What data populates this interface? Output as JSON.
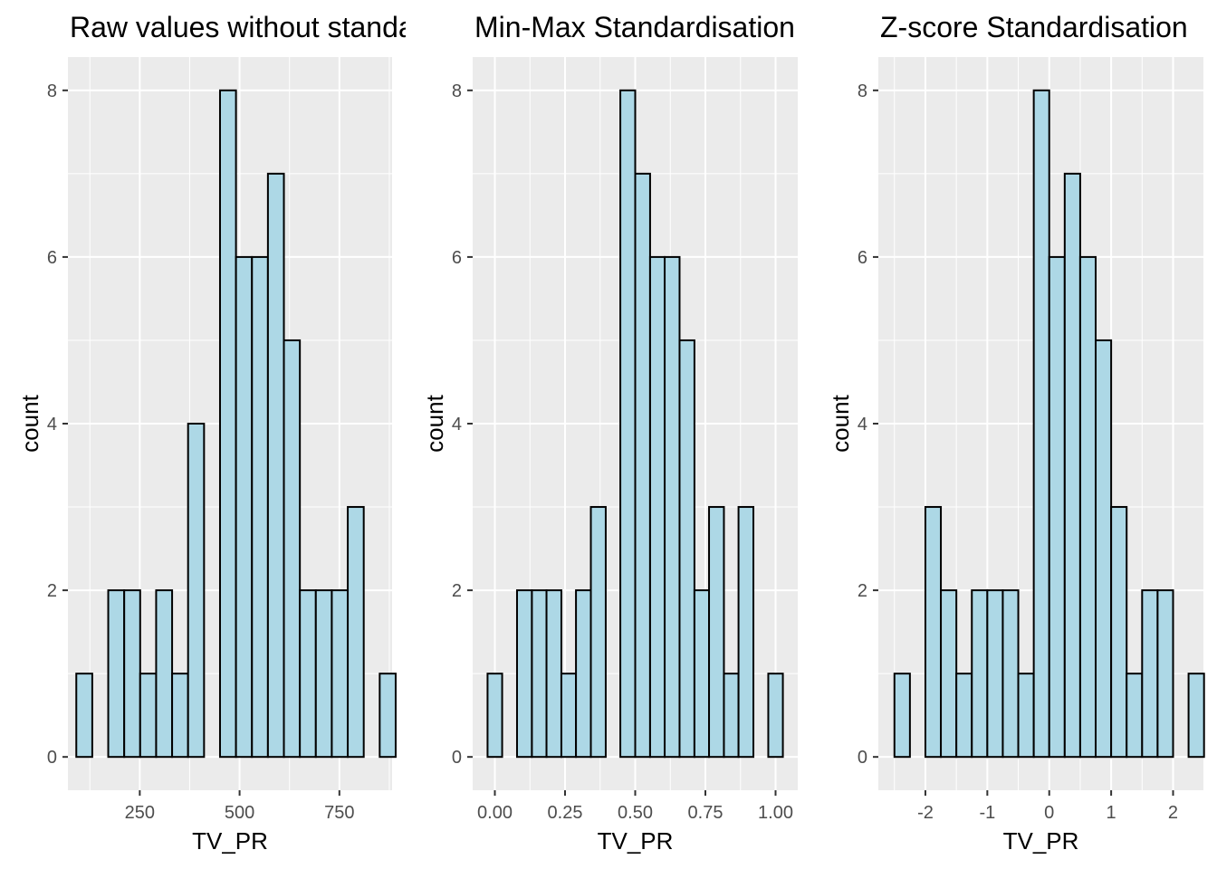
{
  "chart_data": [
    {
      "type": "bar",
      "title": "Raw values without standardisation",
      "xlabel": "TV_PR",
      "ylabel": "count",
      "xticks": [
        250,
        500,
        750
      ],
      "xtick_labels": [
        "250",
        "500",
        "750"
      ],
      "yticks": [
        0,
        2,
        4,
        6,
        8
      ],
      "ytick_labels": [
        "0",
        "2",
        "4",
        "6",
        "8"
      ],
      "xlim": [
        70,
        882
      ],
      "ylim": [
        -0.4,
        8.4
      ],
      "grid": true,
      "bins": [
        {
          "xmin": 91,
          "xmax": 131,
          "count": 1
        },
        {
          "xmin": 131,
          "xmax": 171,
          "count": 0
        },
        {
          "xmin": 171,
          "xmax": 211,
          "count": 2
        },
        {
          "xmin": 211,
          "xmax": 251,
          "count": 2
        },
        {
          "xmin": 251,
          "xmax": 291,
          "count": 1
        },
        {
          "xmin": 291,
          "xmax": 331,
          "count": 2
        },
        {
          "xmin": 331,
          "xmax": 371,
          "count": 1
        },
        {
          "xmin": 371,
          "xmax": 411,
          "count": 4
        },
        {
          "xmin": 411,
          "xmax": 451,
          "count": 0
        },
        {
          "xmin": 451,
          "xmax": 491,
          "count": 8
        },
        {
          "xmin": 491,
          "xmax": 531,
          "count": 6
        },
        {
          "xmin": 531,
          "xmax": 571,
          "count": 6
        },
        {
          "xmin": 571,
          "xmax": 611,
          "count": 7
        },
        {
          "xmin": 611,
          "xmax": 651,
          "count": 5
        },
        {
          "xmin": 651,
          "xmax": 691,
          "count": 2
        },
        {
          "xmin": 691,
          "xmax": 731,
          "count": 2
        },
        {
          "xmin": 731,
          "xmax": 771,
          "count": 2
        },
        {
          "xmin": 771,
          "xmax": 811,
          "count": 3
        },
        {
          "xmin": 811,
          "xmax": 851,
          "count": 0
        },
        {
          "xmin": 851,
          "xmax": 891,
          "count": 1
        }
      ]
    },
    {
      "type": "bar",
      "title": "Min-Max Standardisation",
      "xlabel": "TV_PR",
      "ylabel": "count",
      "xticks": [
        0.0,
        0.25,
        0.5,
        0.75,
        1.0
      ],
      "xtick_labels": [
        "0.00",
        "0.25",
        "0.50",
        "0.75",
        "1.00"
      ],
      "yticks": [
        0,
        2,
        4,
        6,
        8
      ],
      "ytick_labels": [
        "0",
        "2",
        "4",
        "6",
        "8"
      ],
      "xlim": [
        -0.079,
        1.079
      ],
      "ylim": [
        -0.4,
        8.4
      ],
      "grid": true,
      "bins": [
        {
          "xmin": -0.026,
          "xmax": 0.026,
          "count": 1
        },
        {
          "xmin": 0.026,
          "xmax": 0.079,
          "count": 0
        },
        {
          "xmin": 0.079,
          "xmax": 0.132,
          "count": 2
        },
        {
          "xmin": 0.132,
          "xmax": 0.184,
          "count": 2
        },
        {
          "xmin": 0.184,
          "xmax": 0.237,
          "count": 2
        },
        {
          "xmin": 0.237,
          "xmax": 0.289,
          "count": 1
        },
        {
          "xmin": 0.289,
          "xmax": 0.342,
          "count": 2
        },
        {
          "xmin": 0.342,
          "xmax": 0.395,
          "count": 3
        },
        {
          "xmin": 0.395,
          "xmax": 0.447,
          "count": 0
        },
        {
          "xmin": 0.447,
          "xmax": 0.5,
          "count": 8
        },
        {
          "xmin": 0.5,
          "xmax": 0.553,
          "count": 7
        },
        {
          "xmin": 0.553,
          "xmax": 0.605,
          "count": 6
        },
        {
          "xmin": 0.605,
          "xmax": 0.658,
          "count": 6
        },
        {
          "xmin": 0.658,
          "xmax": 0.711,
          "count": 5
        },
        {
          "xmin": 0.711,
          "xmax": 0.763,
          "count": 2
        },
        {
          "xmin": 0.763,
          "xmax": 0.816,
          "count": 3
        },
        {
          "xmin": 0.816,
          "xmax": 0.868,
          "count": 1
        },
        {
          "xmin": 0.868,
          "xmax": 0.921,
          "count": 3
        },
        {
          "xmin": 0.921,
          "xmax": 0.974,
          "count": 0
        },
        {
          "xmin": 0.974,
          "xmax": 1.026,
          "count": 1
        }
      ]
    },
    {
      "type": "bar",
      "title": "Z-score Standardisation",
      "xlabel": "TV_PR",
      "ylabel": "count",
      "xticks": [
        -2,
        -1,
        0,
        1,
        2
      ],
      "xtick_labels": [
        "-2",
        "-1",
        "0",
        "1",
        "2"
      ],
      "yticks": [
        0,
        2,
        4,
        6,
        8
      ],
      "ytick_labels": [
        "0",
        "2",
        "4",
        "6",
        "8"
      ],
      "xlim": [
        -2.76,
        2.49
      ],
      "ylim": [
        -0.4,
        8.4
      ],
      "grid": true,
      "bins": [
        {
          "xmin": -2.5,
          "xmax": -2.25,
          "count": 1
        },
        {
          "xmin": -2.25,
          "xmax": -2.0,
          "count": 0
        },
        {
          "xmin": -2.0,
          "xmax": -1.75,
          "count": 3
        },
        {
          "xmin": -1.75,
          "xmax": -1.5,
          "count": 2
        },
        {
          "xmin": -1.5,
          "xmax": -1.25,
          "count": 1
        },
        {
          "xmin": -1.25,
          "xmax": -1.0,
          "count": 2
        },
        {
          "xmin": -1.0,
          "xmax": -0.75,
          "count": 2
        },
        {
          "xmin": -0.75,
          "xmax": -0.5,
          "count": 2
        },
        {
          "xmin": -0.5,
          "xmax": -0.25,
          "count": 1
        },
        {
          "xmin": -0.25,
          "xmax": 0.0,
          "count": 8
        },
        {
          "xmin": 0.0,
          "xmax": 0.25,
          "count": 6
        },
        {
          "xmin": 0.25,
          "xmax": 0.5,
          "count": 7
        },
        {
          "xmin": 0.5,
          "xmax": 0.75,
          "count": 6
        },
        {
          "xmin": 0.75,
          "xmax": 1.0,
          "count": 5
        },
        {
          "xmin": 1.0,
          "xmax": 1.25,
          "count": 3
        },
        {
          "xmin": 1.25,
          "xmax": 1.5,
          "count": 1
        },
        {
          "xmin": 1.5,
          "xmax": 1.75,
          "count": 2
        },
        {
          "xmin": 1.75,
          "xmax": 2.0,
          "count": 2
        },
        {
          "xmin": 2.0,
          "xmax": 2.25,
          "count": 0
        },
        {
          "xmin": 2.25,
          "xmax": 2.5,
          "count": 1
        }
      ]
    }
  ],
  "colors": {
    "bar_fill": "#add8e6",
    "bar_stroke": "#000000",
    "panel_background": "#ebebeb",
    "grid": "#ffffff",
    "tick_text": "#4d4d4d"
  }
}
